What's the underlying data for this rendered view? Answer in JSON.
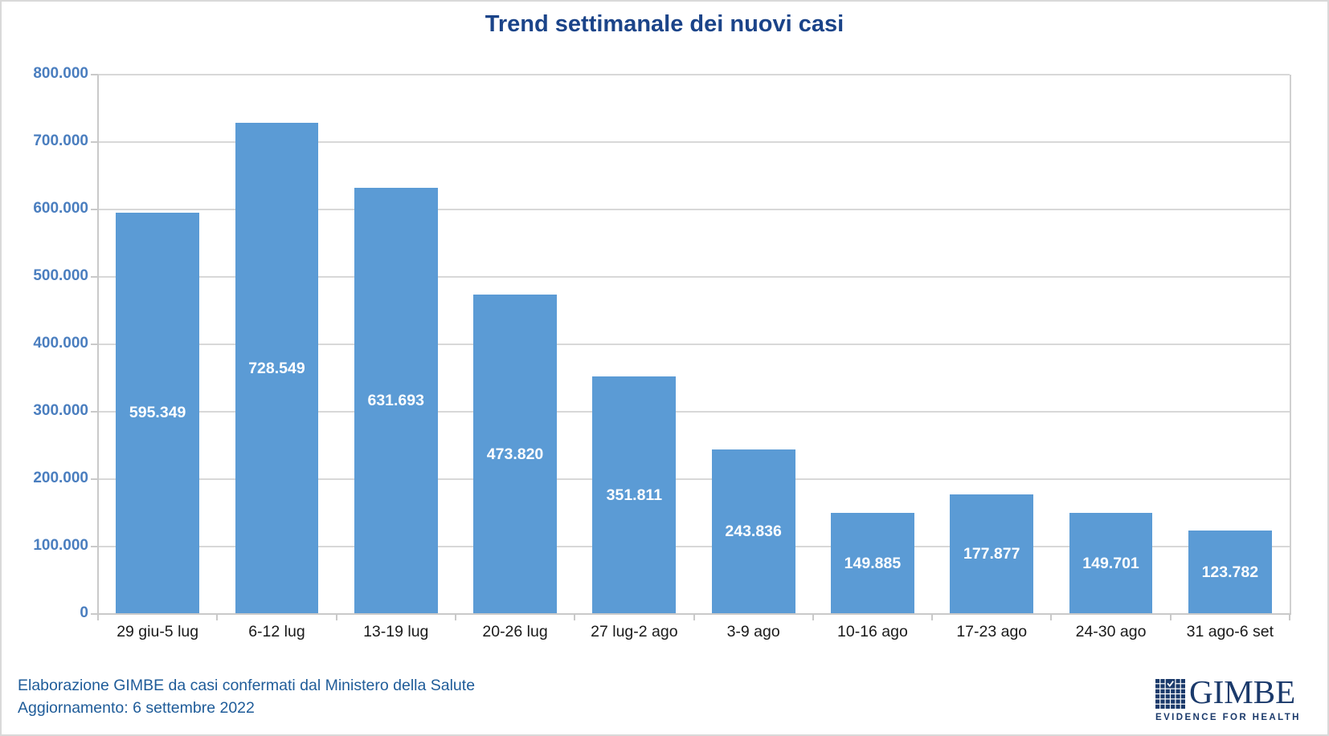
{
  "title": "Trend settimanale dei nuovi casi",
  "chart_data": {
    "type": "bar",
    "title": "Trend settimanale dei nuovi casi",
    "categories": [
      "29 giu-5 lug",
      "6-12 lug",
      "13-19 lug",
      "20-26 lug",
      "27 lug-2 ago",
      "3-9 ago",
      "10-16 ago",
      "17-23 ago",
      "24-30 ago",
      "31 ago-6 set"
    ],
    "values": [
      595349,
      728549,
      631693,
      473820,
      351811,
      243836,
      149885,
      177877,
      149701,
      123782
    ],
    "value_labels": [
      "595.349",
      "728.549",
      "631.693",
      "473.820",
      "351.811",
      "243.836",
      "149.885",
      "177.877",
      "149.701",
      "123.782"
    ],
    "xlabel": "",
    "ylabel": "",
    "ylim": [
      0,
      800000
    ],
    "ytick_interval": 100000,
    "ytick_labels": [
      "0",
      "100.000",
      "200.000",
      "300.000",
      "400.000",
      "500.000",
      "600.000",
      "700.000",
      "800.000"
    ],
    "grid": true,
    "legend": "none",
    "bar_color": "#5b9bd5",
    "bar_label_color": "#ffffff",
    "axis_label_color": "#4a7ebf",
    "category_label_color": "#1a1a1a"
  },
  "footer": {
    "source": "Elaborazione GIMBE da casi confermati dal Ministero della Salute",
    "update": "Aggiornamento: 6 settembre 2022"
  },
  "logo": {
    "name": "GIMBE",
    "tagline": "EVIDENCE FOR HEALTH"
  },
  "colors": {
    "title": "#1b4489",
    "footer_text": "#1f5c99",
    "logo_navy": "#1b3a6b",
    "gridline": "#d8d8d8",
    "axis_line": "#c9c9c9"
  }
}
